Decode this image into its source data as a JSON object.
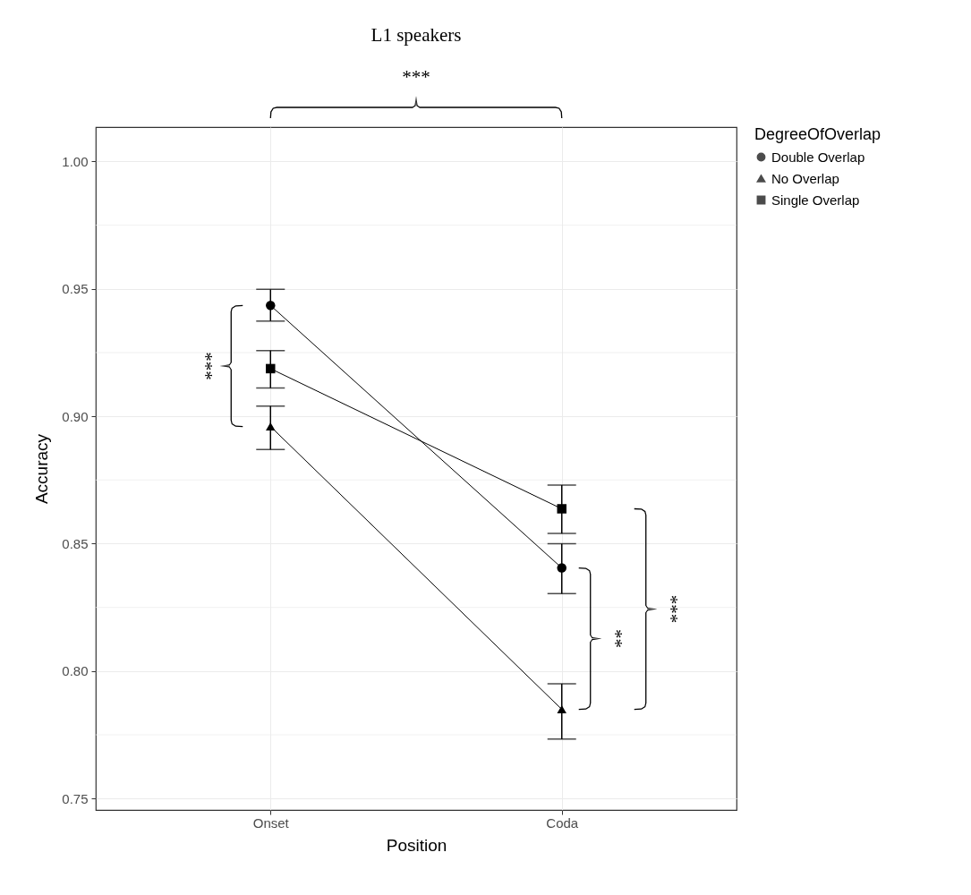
{
  "chart_data": {
    "type": "line",
    "title": "L1 speakers",
    "xlabel": "Position",
    "ylabel": "Accuracy",
    "legend_title": "DegreeOfOverlap",
    "categories": [
      "Onset",
      "Coda"
    ],
    "series": [
      {
        "name": "Double Overlap",
        "color": "#000000",
        "marker": "circle",
        "values": [
          0.9435,
          0.8405
        ],
        "errors": [
          [
            0.9374,
            0.9498
          ],
          [
            0.8304,
            0.85
          ]
        ]
      },
      {
        "name": "No Overlap",
        "color": "#000000",
        "marker": "triangle",
        "values": [
          0.896,
          0.785
        ],
        "errors": [
          [
            0.887,
            0.904
          ],
          [
            0.7733,
            0.795
          ]
        ]
      },
      {
        "name": "Single Overlap",
        "color": "#000000",
        "marker": "square",
        "values": [
          0.9187,
          0.8637
        ],
        "errors": [
          [
            0.9111,
            0.9258
          ],
          [
            0.854,
            0.873
          ]
        ]
      }
    ],
    "ylim": [
      0.7455,
      1.0135
    ],
    "yticks": [
      0.75,
      {
        "value": 0.8,
        "label": "0.80"
      },
      0.85,
      {
        "value": 0.9,
        "label": "0.90"
      },
      0.95,
      {
        "value": 1,
        "label": "1.00"
      }
    ],
    "annotations": [
      "***",
      "***",
      "**",
      "***"
    ],
    "grid": true,
    "legend": "right"
  }
}
